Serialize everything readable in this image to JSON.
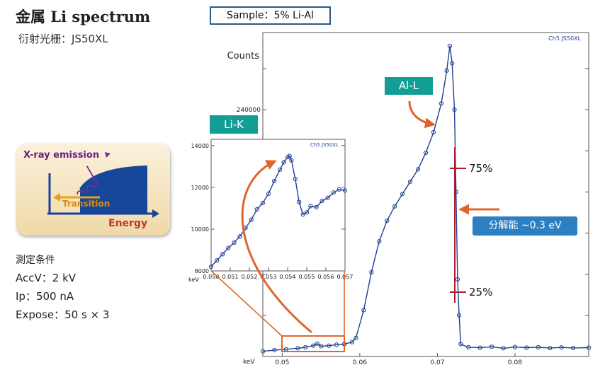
{
  "header": {
    "title": "金属 Li spectrum",
    "grating": "衍射光栅：JS50XL",
    "sample": "Sample：5% Li-Al"
  },
  "conditions": {
    "heading": "測定条件",
    "accv": "AccV：2 kV",
    "ip": "Ip：500 nA",
    "expose": "Expose：50 s × 3"
  },
  "schematic": {
    "emission_label": "X-ray emission",
    "transition_label": "Transition",
    "energy_label": "Energy"
  },
  "annotations": {
    "li_k": "Li-K",
    "al_l": "Al-L",
    "p75": "75%",
    "p25": "25%",
    "resolution": "分解能 ~0.3 eV"
  },
  "colors": {
    "data": "#1f3f8f",
    "arrow": "#e0652a",
    "marker": "#b3182e",
    "tag": "#139e95",
    "reso": "#2c7fc0"
  },
  "chart_data": [
    {
      "type": "line",
      "name": "main",
      "instrument": "Ch5 JS50XL",
      "xlabel": "keV",
      "ylabel": "Counts",
      "xlim": [
        0.0475,
        0.0895
      ],
      "ylim": [
        0,
        315000
      ],
      "xticks": [
        0.05,
        0.06,
        0.07,
        0.08
      ],
      "xtick_labels": [
        "0.05",
        "0.06",
        "0.07",
        "0.08"
      ],
      "ytick_labeled": [
        240000
      ],
      "ytick_labels": [
        "240000"
      ],
      "yticks_minor": [
        40000,
        80000,
        120000,
        160000,
        200000,
        280000
      ],
      "x": [
        0.0475,
        0.049,
        0.0505,
        0.052,
        0.053,
        0.054,
        0.0545,
        0.055,
        0.056,
        0.057,
        0.058,
        0.059,
        0.0595,
        0.0605,
        0.0615,
        0.0625,
        0.0635,
        0.0645,
        0.0655,
        0.0665,
        0.0675,
        0.0685,
        0.0695,
        0.0705,
        0.0712,
        0.0716,
        0.0719,
        0.0722,
        0.0724,
        0.0726,
        0.0728,
        0.073,
        0.074,
        0.0755,
        0.077,
        0.0785,
        0.08,
        0.0815,
        0.083,
        0.0845,
        0.086,
        0.0875,
        0.0895
      ],
      "y": [
        5000,
        6200,
        7000,
        8000,
        9000,
        10500,
        12500,
        10000,
        10500,
        11500,
        12000,
        14000,
        18000,
        45000,
        82000,
        112000,
        132000,
        146000,
        158000,
        170000,
        182000,
        198000,
        218000,
        246000,
        278000,
        302000,
        285000,
        240000,
        160000,
        75000,
        40000,
        12000,
        9000,
        8500,
        9500,
        8000,
        9200,
        8600,
        9000,
        8200,
        8800,
        8300,
        8600
      ]
    },
    {
      "type": "line",
      "name": "inset",
      "instrument": "Ch5 JS50XL",
      "xlabel": "keV",
      "xlim": [
        0.05,
        0.057
      ],
      "ylim": [
        8000,
        14300
      ],
      "xticks": [
        0.05,
        0.051,
        0.052,
        0.053,
        0.054,
        0.055,
        0.056,
        0.057
      ],
      "xtick_labels": [
        "0.050",
        "0.051",
        "0.052",
        "0.053",
        "0.054",
        "0.055",
        "0.056",
        "0.057"
      ],
      "yticks": [
        8000,
        10000,
        12000,
        14000
      ],
      "ytick_labels": [
        "8000",
        "10000",
        "12000",
        "14000"
      ],
      "x": [
        0.05,
        0.0503,
        0.0506,
        0.0509,
        0.0512,
        0.0515,
        0.0518,
        0.0521,
        0.0524,
        0.0527,
        0.053,
        0.0533,
        0.0536,
        0.0538,
        0.054,
        0.0541,
        0.0542,
        0.0544,
        0.0546,
        0.0548,
        0.055,
        0.0552,
        0.0555,
        0.0558,
        0.0561,
        0.0564,
        0.0567,
        0.057
      ],
      "y": [
        8200,
        8500,
        8800,
        9100,
        9350,
        9650,
        10050,
        10450,
        10950,
        11250,
        11700,
        12300,
        12850,
        13200,
        13450,
        13500,
        13300,
        12400,
        11300,
        10700,
        10800,
        11100,
        11050,
        11350,
        11500,
        11750,
        11900,
        11850
      ]
    }
  ]
}
